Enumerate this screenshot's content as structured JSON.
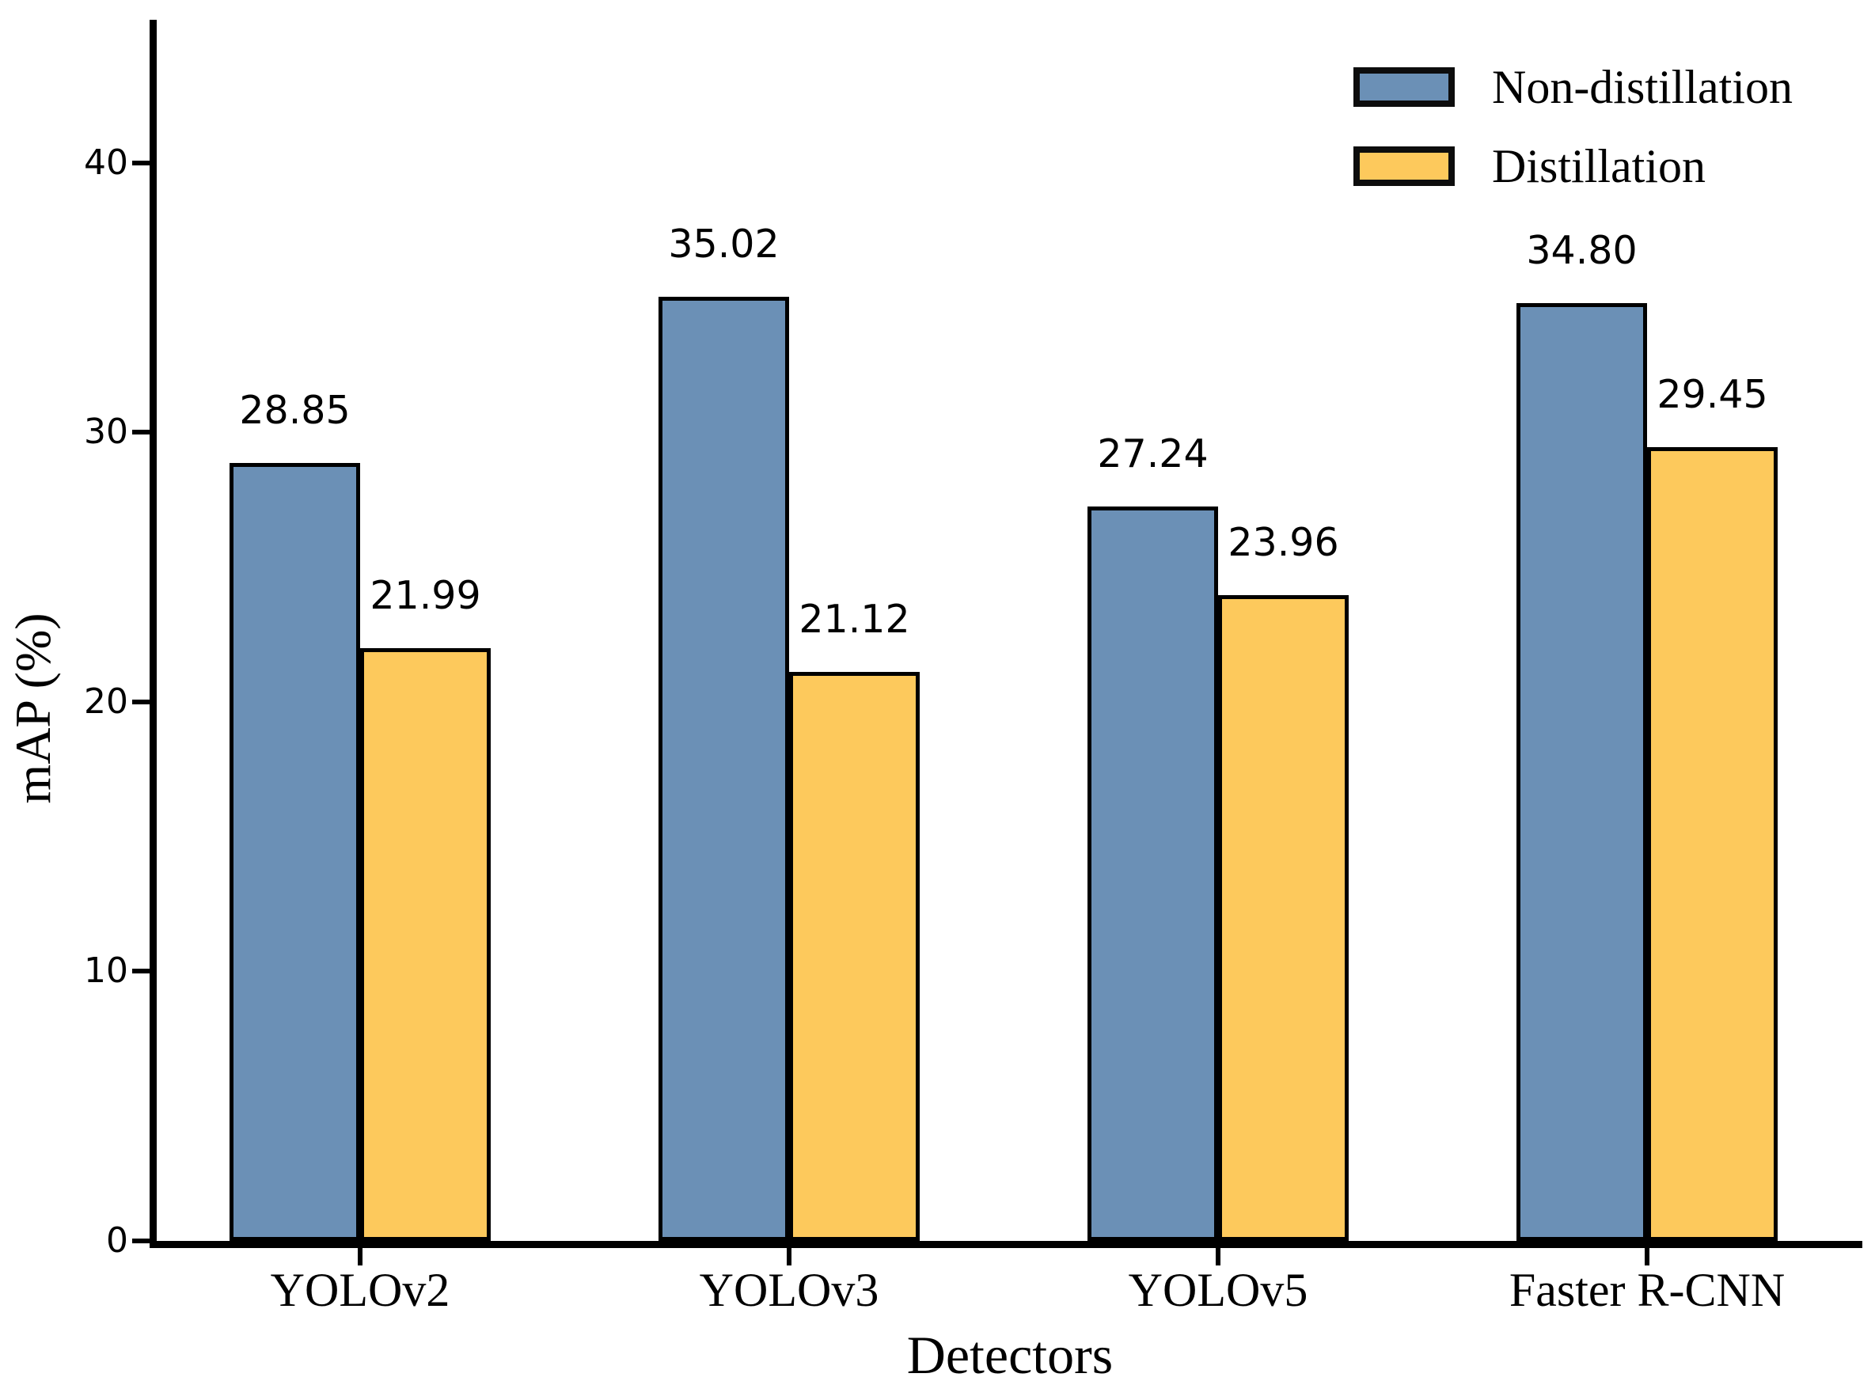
{
  "chart_data": {
    "type": "bar",
    "title": "",
    "categories": [
      "YOLOv2",
      "YOLOv3",
      "YOLOv5",
      "Faster R-CNN"
    ],
    "series": [
      {
        "name": "Non-distillation",
        "color": "#6b90b6",
        "values": [
          28.85,
          35.02,
          27.24,
          34.8
        ],
        "value_labels": [
          "28.85",
          "35.02",
          "27.24",
          "34.80"
        ]
      },
      {
        "name": "Distillation",
        "color": "#fdc95c",
        "values": [
          21.99,
          21.12,
          23.96,
          29.45
        ],
        "value_labels": [
          "21.99",
          "21.12",
          "23.96",
          "29.45"
        ]
      }
    ],
    "xlabel": "Detectors",
    "ylabel": "mAP (%)",
    "yticks": [
      "0",
      "10",
      "20",
      "30",
      "40"
    ],
    "ytick_values": [
      0,
      10,
      20,
      30,
      40
    ],
    "ylim": [
      0,
      45.3
    ],
    "grid": false,
    "legend_position": "upper right",
    "bar_edge_color": "#000000",
    "axis_color": "#000000"
  }
}
